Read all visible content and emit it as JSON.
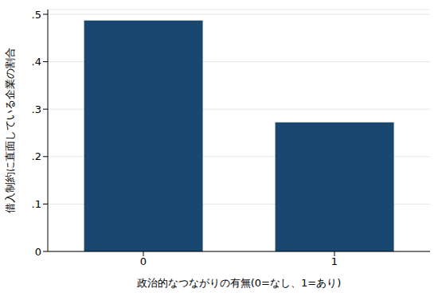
{
  "chart_data": {
    "type": "bar",
    "categories": [
      "0",
      "1"
    ],
    "values": [
      0.487,
      0.272
    ],
    "color": "#1a476f",
    "x_label": "政治的なつながりの有無(0=なし、1=あり)",
    "y_label": "借入制約に直面している企業の割合",
    "ylim": [
      0,
      0.51
    ],
    "yticks": [
      0,
      {
        "value": 0.1,
        "label": ".1"
      },
      {
        "value": 0.2,
        "label": ".2"
      },
      {
        "value": 0.3,
        "label": ".3"
      },
      {
        "value": 0.4,
        "label": ".4"
      },
      {
        "value": 0.5,
        "label": ".5"
      }
    ],
    "grid": true
  }
}
